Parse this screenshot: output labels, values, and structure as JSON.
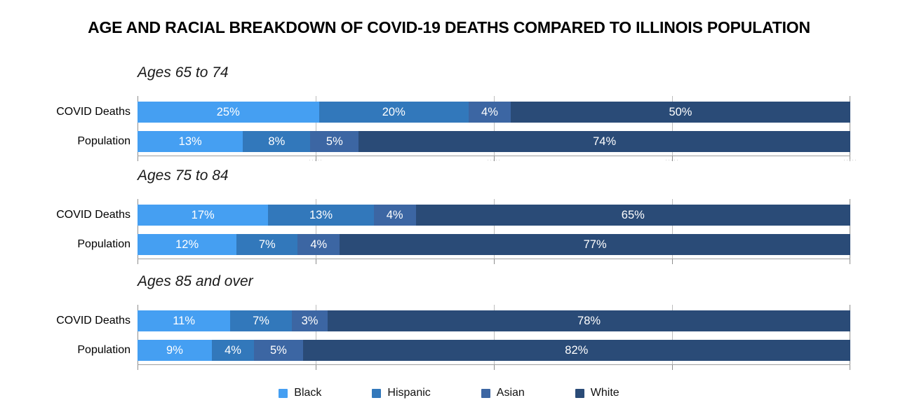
{
  "chart_data": {
    "type": "bar",
    "orientation": "horizontal",
    "stacked": true,
    "title": "AGE AND RACIAL BREAKDOWN OF COVID-19 DEATHS COMPARED TO ILLINOIS POPULATION",
    "unit": "%",
    "xlim": [
      0,
      100
    ],
    "gridlines_pct": [
      0,
      25,
      50,
      75,
      100
    ],
    "faded_tick_positions_pct": [
      25,
      50,
      75,
      100
    ],
    "faded_tick_mark": "·····",
    "legend_position": "bottom",
    "categories": [
      "Black",
      "Hispanic",
      "Asian",
      "White"
    ],
    "series_colors": [
      "#459FF2",
      "#3278BB",
      "#3C66A3",
      "#2A4B77"
    ],
    "sections": [
      {
        "header": "Ages 65 to 74",
        "rows": [
          {
            "label": "COVID Deaths",
            "values": [
              25,
              20,
              4,
              50
            ],
            "value_labels": [
              "25%",
              "20%",
              "4%",
              "50%"
            ]
          },
          {
            "label": "Population",
            "values": [
              13,
              8,
              5,
              74
            ],
            "value_labels": [
              "13%",
              "8%",
              "5%",
              "74%"
            ]
          }
        ]
      },
      {
        "header": "Ages 75 to 84",
        "rows": [
          {
            "label": "COVID Deaths",
            "values": [
              17,
              13,
              4,
              65
            ],
            "value_labels": [
              "17%",
              "13%",
              "4%",
              "65%"
            ]
          },
          {
            "label": "Population",
            "values": [
              12,
              7,
              4,
              77
            ],
            "value_labels": [
              "12%",
              "7%",
              "4%",
              "77%"
            ]
          }
        ]
      },
      {
        "header": "Ages 85 and over",
        "rows": [
          {
            "label": "COVID Deaths",
            "values": [
              11,
              7,
              3,
              78
            ],
            "value_labels": [
              "11%",
              "7%",
              "3%",
              "78%"
            ]
          },
          {
            "label": "Population",
            "values": [
              9,
              4,
              5,
              82
            ],
            "value_labels": [
              "9%",
              "4%",
              "5%",
              "82%"
            ]
          }
        ]
      }
    ]
  }
}
